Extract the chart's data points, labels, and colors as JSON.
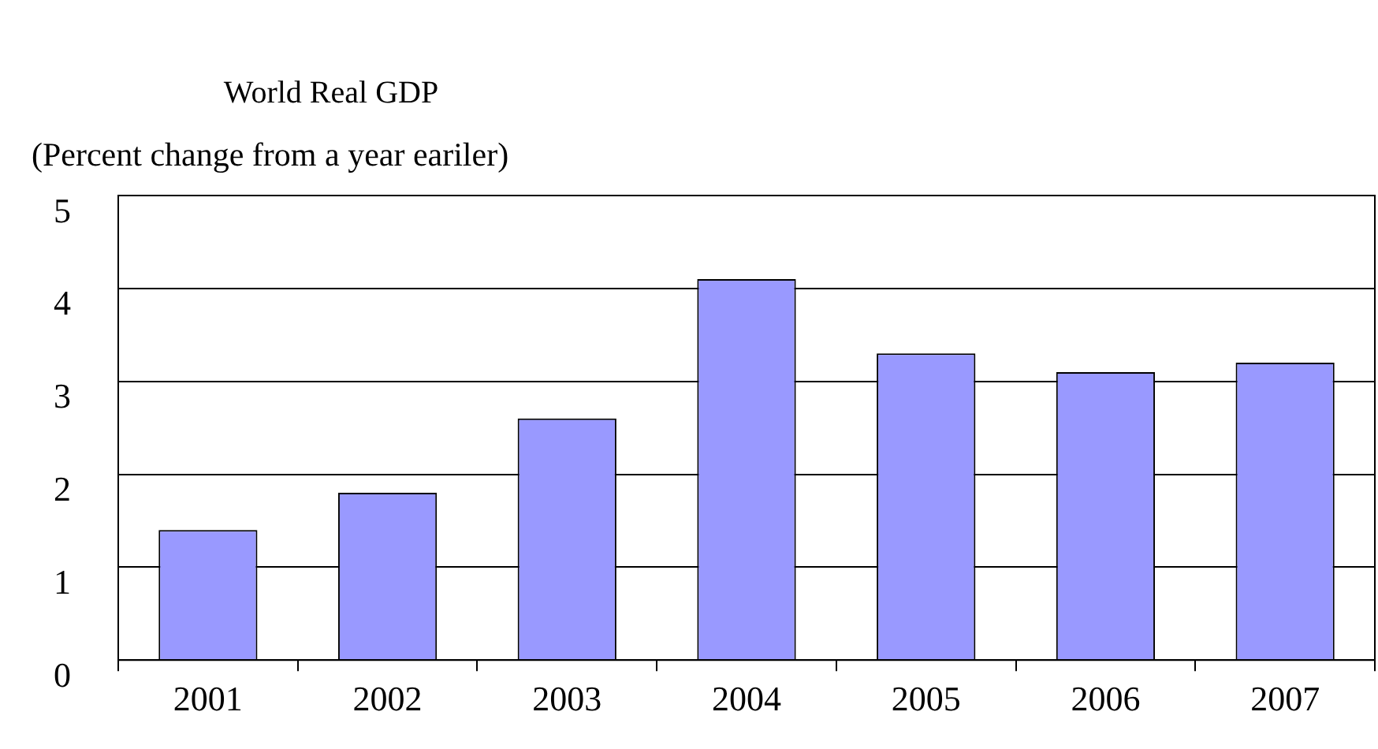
{
  "chart_data": {
    "type": "bar",
    "title": "World Real GDP",
    "subtitle": "(Percent change from a year eariler)",
    "categories": [
      "2001",
      "2002",
      "2003",
      "2004",
      "2005",
      "2006",
      "2007"
    ],
    "values": [
      1.4,
      1.8,
      2.6,
      4.1,
      3.3,
      3.1,
      3.2
    ],
    "color": "#9999ff",
    "ylim": [
      0,
      5
    ],
    "yticks": [
      0,
      1,
      2,
      3,
      4,
      5
    ],
    "grid": "y"
  }
}
